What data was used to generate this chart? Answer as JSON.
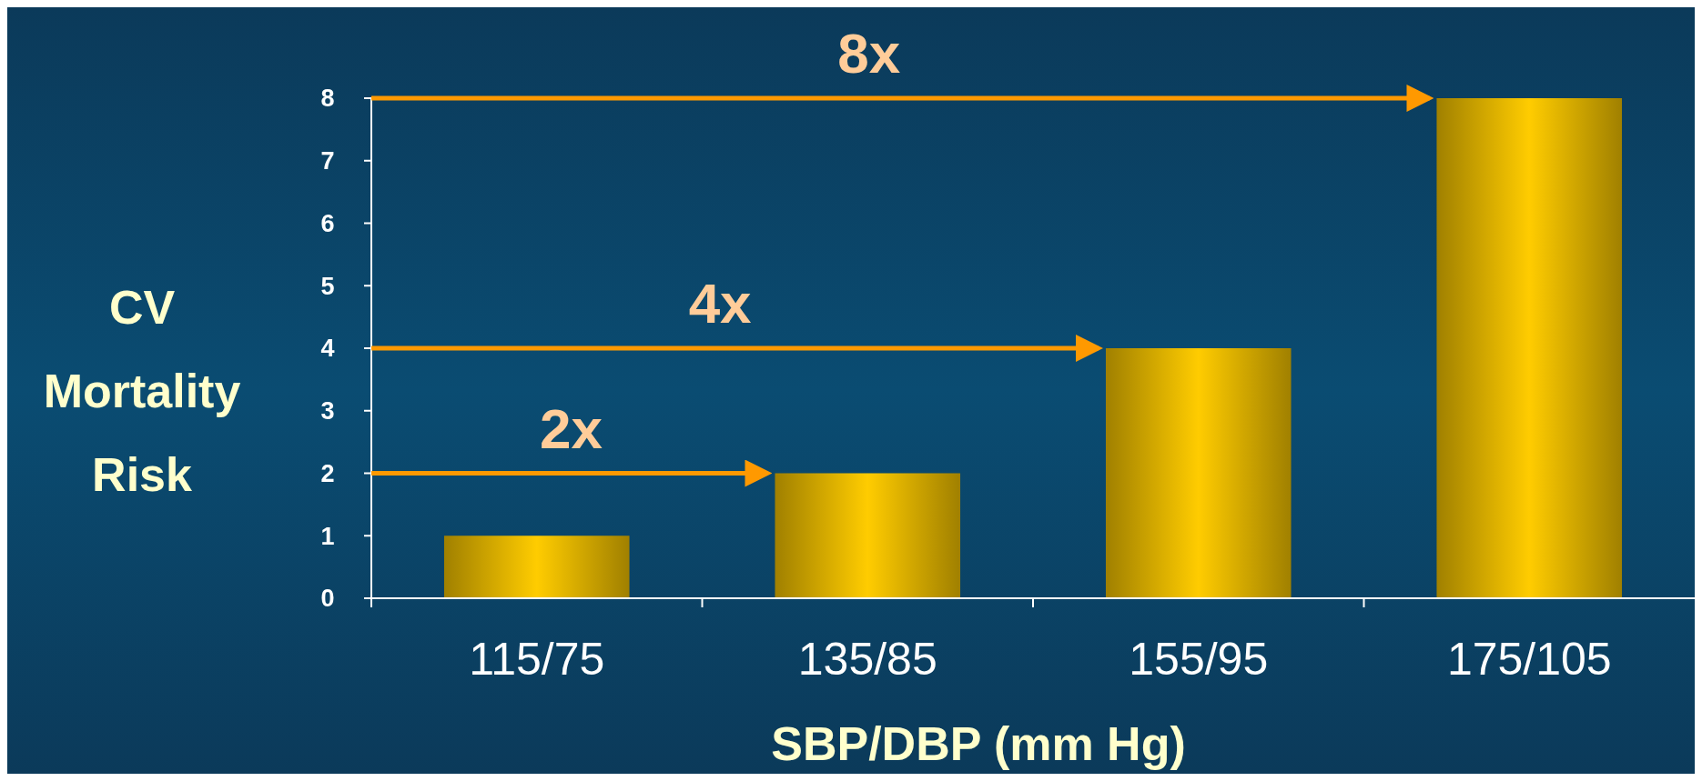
{
  "chart_data": {
    "type": "bar",
    "categories": [
      "115/75",
      "135/85",
      "155/95",
      "175/105"
    ],
    "values": [
      1,
      2,
      4,
      8
    ],
    "color": "#ffcc00",
    "xlabel": "SBP/DBP (mm Hg)",
    "ylabel": "CV Mortality Risk",
    "ylim": [
      0,
      8
    ],
    "yticks": [
      0,
      1,
      2,
      3,
      4,
      5,
      6,
      7,
      8
    ],
    "grid": false,
    "annotations": [
      "2x",
      "4x",
      "8x"
    ]
  }
}
